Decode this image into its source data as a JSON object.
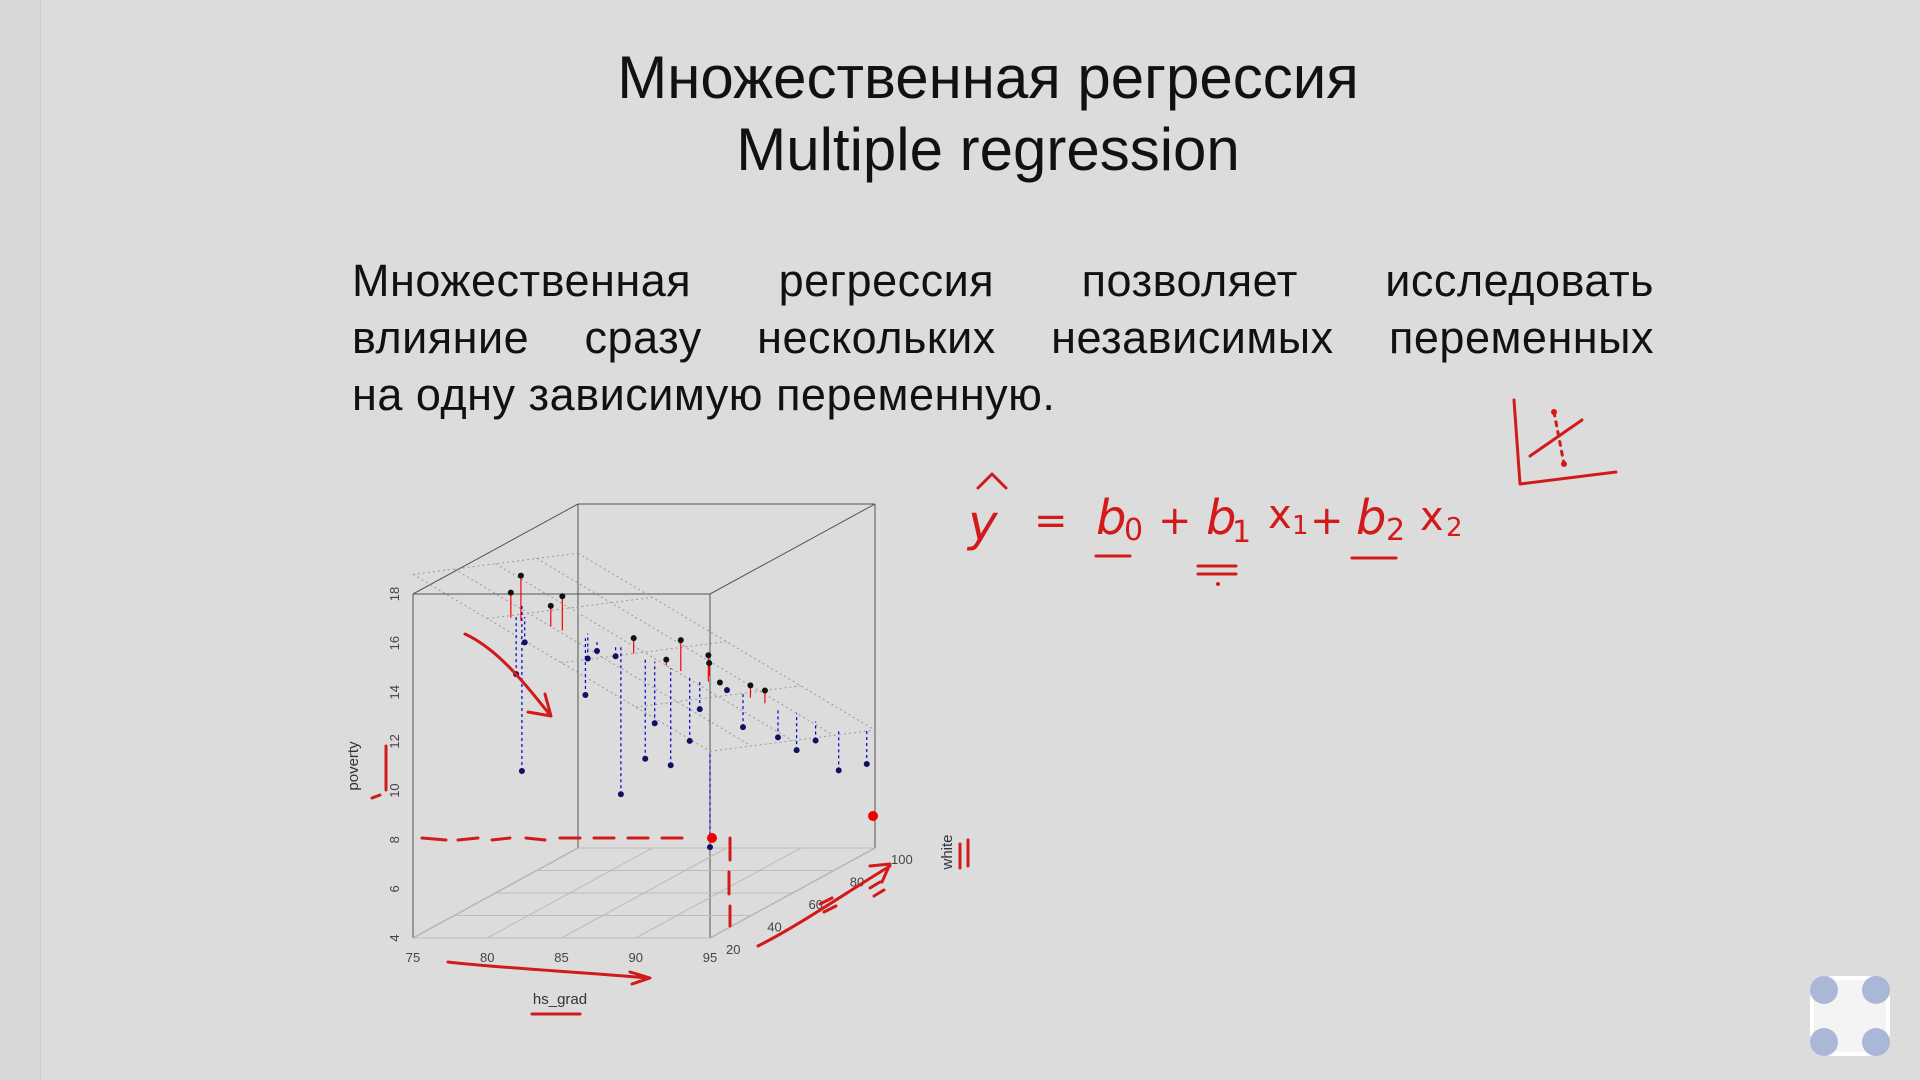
{
  "title": {
    "line1": "Множественная регрессия",
    "line2": "Multiple regression"
  },
  "paragraph": {
    "line1": "Множественная регрессия позволяет исследовать",
    "line2": "влияние сразу нескольких независимых переменных",
    "line3": "на одну зависимую переменную."
  },
  "chart_data": {
    "type": "scatter",
    "projection": "3d",
    "xlabel": "hs_grad",
    "ylabel": "white",
    "zlabel": "poverty",
    "x_ticks": [
      "75",
      "80",
      "85",
      "90",
      "95"
    ],
    "y_ticks": [
      "20",
      "40",
      "60",
      "80",
      "100"
    ],
    "z_ticks": [
      "4",
      "6",
      "8",
      "10",
      "12",
      "14",
      "16",
      "18"
    ],
    "xlim": [
      75,
      95
    ],
    "ylim": [
      20,
      100
    ],
    "zlim": [
      4,
      18
    ],
    "fitted_plane": true,
    "residual_colors": {
      "above": "#ff0000",
      "below": "#0000cc"
    },
    "points": [
      {
        "x": 80.2,
        "y": 30,
        "z": 17.6
      },
      {
        "x": 80.6,
        "y": 32,
        "z": 18.2
      },
      {
        "x": 81.5,
        "y": 40,
        "z": 16.6
      },
      {
        "x": 82.0,
        "y": 42,
        "z": 16.9
      },
      {
        "x": 80.0,
        "y": 34,
        "z": 14.1
      },
      {
        "x": 80.3,
        "y": 36,
        "z": 15.3
      },
      {
        "x": 82.6,
        "y": 50,
        "z": 14.0
      },
      {
        "x": 83.5,
        "y": 48,
        "z": 14.4
      },
      {
        "x": 84.2,
        "y": 52,
        "z": 14.0
      },
      {
        "x": 83.0,
        "y": 46,
        "z": 12.7
      },
      {
        "x": 85.0,
        "y": 55,
        "z": 14.6
      },
      {
        "x": 86.5,
        "y": 60,
        "z": 13.5
      },
      {
        "x": 87.2,
        "y": 62,
        "z": 14.2
      },
      {
        "x": 88.5,
        "y": 66,
        "z": 13.4
      },
      {
        "x": 89.0,
        "y": 68,
        "z": 12.2
      },
      {
        "x": 86.0,
        "y": 58,
        "z": 11.0
      },
      {
        "x": 85.5,
        "y": 57,
        "z": 9.6
      },
      {
        "x": 86.8,
        "y": 60,
        "z": 9.2
      },
      {
        "x": 87.8,
        "y": 62,
        "z": 10.1
      },
      {
        "x": 88.2,
        "y": 64,
        "z": 11.3
      },
      {
        "x": 89.2,
        "y": 70,
        "z": 11.8
      },
      {
        "x": 90.5,
        "y": 72,
        "z": 11.9
      },
      {
        "x": 91.2,
        "y": 74,
        "z": 11.6
      },
      {
        "x": 90.0,
        "y": 72,
        "z": 10.2
      },
      {
        "x": 91.8,
        "y": 76,
        "z": 9.6
      },
      {
        "x": 92.5,
        "y": 80,
        "z": 8.9
      },
      {
        "x": 93.5,
        "y": 82,
        "z": 9.2
      },
      {
        "x": 94.5,
        "y": 86,
        "z": 7.8
      },
      {
        "x": 95.0,
        "y": 96,
        "z": 7.6
      },
      {
        "x": 95.0,
        "y": 20,
        "z": 7.7
      },
      {
        "x": 79.0,
        "y": 44,
        "z": 9.7
      },
      {
        "x": 84.0,
        "y": 56,
        "z": 8.2
      },
      {
        "x": 88.0,
        "y": 70,
        "z": 12.9
      }
    ]
  },
  "annotations": {
    "formula": {
      "yhat": "y",
      "eq": "=",
      "b0_main": "b",
      "b0_sub": "0",
      "plus1": "+",
      "b1_main": "b",
      "b1_sub": "1",
      "x1_main": "x",
      "x1_sub": "1",
      "plus2": "+",
      "b2_main": "b",
      "b2_sub": "2",
      "x2_main": "x",
      "x2_sub": "2"
    },
    "ink_color": "#d21a1a"
  },
  "app_logo_icon": "four-dots-logo-icon"
}
